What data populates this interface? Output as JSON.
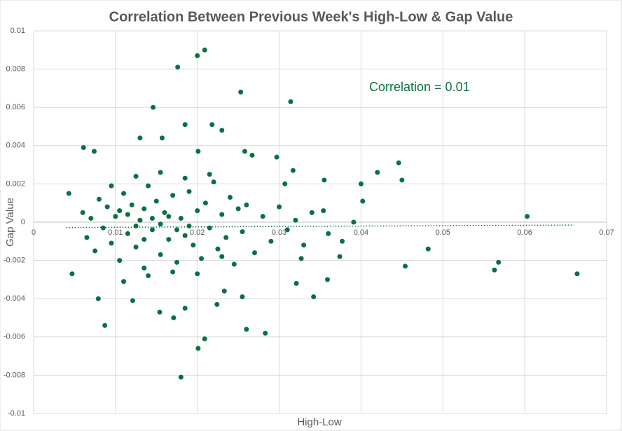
{
  "chart_data": {
    "type": "scatter",
    "title": "Correlation Between Previous Week's High-Low & Gap Value",
    "x_label": "High-Low",
    "y_label": "Gap Value",
    "annotation": "Correlation = 0.01",
    "xlim": [
      0,
      0.07
    ],
    "xticks": [
      0,
      0.01,
      0.02,
      0.03,
      0.04,
      0.05,
      0.06,
      0.07
    ],
    "ylim": [
      -0.01,
      0.01
    ],
    "yticks": [
      0.01,
      0.008,
      0.006,
      0.004,
      0.002,
      0,
      -0.002,
      -0.004,
      -0.006,
      -0.008,
      -0.01
    ],
    "grid": true,
    "trendline": {
      "color": "#0b7040",
      "x": [
        0.004,
        0.066
      ],
      "values": [
        -0.00028,
        -0.00015
      ]
    },
    "series": [
      {
        "color": "#0b7040",
        "x": [
          0.0209,
          0.02,
          0.0176,
          0.0253,
          0.0314,
          0.0146,
          0.0185,
          0.0218,
          0.023,
          0.0061,
          0.0074,
          0.013,
          0.0157,
          0.0201,
          0.0258,
          0.0297,
          0.0446,
          0.042,
          0.045,
          0.04,
          0.0402,
          0.0603,
          0.0482,
          0.0454,
          0.0568,
          0.0563,
          0.0664,
          0.0047,
          0.0043,
          0.0079,
          0.0087,
          0.018,
          0.0201,
          0.0209,
          0.026,
          0.0283,
          0.0342,
          0.0359,
          0.0321,
          0.0377,
          0.0374,
          0.0327,
          0.0171,
          0.0185,
          0.0154,
          0.0224,
          0.0255,
          0.0233,
          0.0121,
          0.0354,
          0.0355,
          0.0317,
          0.0267,
          0.0307,
          0.0391,
          0.006,
          0.0065,
          0.007,
          0.0075,
          0.008,
          0.0085,
          0.009,
          0.0095,
          0.01,
          0.0105,
          0.011,
          0.0115,
          0.012,
          0.0125,
          0.013,
          0.0135,
          0.014,
          0.0145,
          0.015,
          0.0155,
          0.016,
          0.0165,
          0.017,
          0.0175,
          0.018,
          0.0185,
          0.019,
          0.0195,
          0.02,
          0.0205,
          0.021,
          0.0215,
          0.022,
          0.0225,
          0.023,
          0.0235,
          0.024,
          0.0245,
          0.025,
          0.0255,
          0.026,
          0.027,
          0.028,
          0.029,
          0.03,
          0.031,
          0.032,
          0.033,
          0.034,
          0.036,
          0.0095,
          0.011,
          0.0125,
          0.014,
          0.0155,
          0.017,
          0.0185,
          0.02,
          0.0215,
          0.023,
          0.0115,
          0.0135,
          0.0155,
          0.0165,
          0.0125,
          0.0145,
          0.0175,
          0.0105,
          0.019,
          0.0135
        ],
        "values": [
          0.009,
          0.0087,
          0.0081,
          0.0068,
          0.0063,
          0.006,
          0.0051,
          0.0051,
          0.0048,
          0.0039,
          0.0037,
          0.0044,
          0.0044,
          0.0037,
          0.0037,
          0.0034,
          0.0031,
          0.0026,
          0.0022,
          0.002,
          0.0011,
          0.0003,
          -0.0014,
          -0.0023,
          -0.0021,
          -0.0025,
          -0.0027,
          -0.0027,
          0.0015,
          -0.004,
          -0.0054,
          -0.0081,
          -0.0066,
          -0.0061,
          -0.0056,
          -0.0058,
          -0.0039,
          -0.003,
          -0.0032,
          -0.001,
          -0.0018,
          -0.0019,
          -0.005,
          -0.0045,
          -0.0047,
          -0.0043,
          -0.0039,
          -0.0036,
          -0.0041,
          0.0006,
          0.0022,
          0.0027,
          0.0035,
          0.002,
          0,
          0.0005,
          -0.0008,
          0.0002,
          -0.0015,
          0.0012,
          -0.0003,
          0.0008,
          -0.0011,
          0.0003,
          -0.002,
          0.0015,
          -0.0006,
          0.0009,
          -0.0013,
          0.0001,
          -0.0024,
          0.0019,
          -0.0004,
          0.0011,
          -0.0017,
          0.0005,
          -0.0009,
          0.0014,
          -0.0021,
          0.0002,
          -0.0007,
          0.0016,
          -0.0012,
          0.0006,
          -0.0019,
          0.001,
          -0.0003,
          0.0021,
          -0.0014,
          0.0004,
          -0.0008,
          0.0013,
          -0.0022,
          0.0007,
          -0.0005,
          0.0009,
          -0.0016,
          0.0003,
          -0.001,
          0.0008,
          -0.0004,
          0.0001,
          -0.0012,
          0.0005,
          -0.0006,
          0.0019,
          -0.0031,
          0.0024,
          -0.0028,
          0.0026,
          -0.0026,
          0.0023,
          -0.0027,
          0.0025,
          -0.0018,
          0.0004,
          0.0007,
          -0.0001,
          0.0003,
          -0.0002,
          0.0002,
          -0.0004,
          0.0006,
          -0.0002,
          -0.0009
        ]
      }
    ]
  }
}
